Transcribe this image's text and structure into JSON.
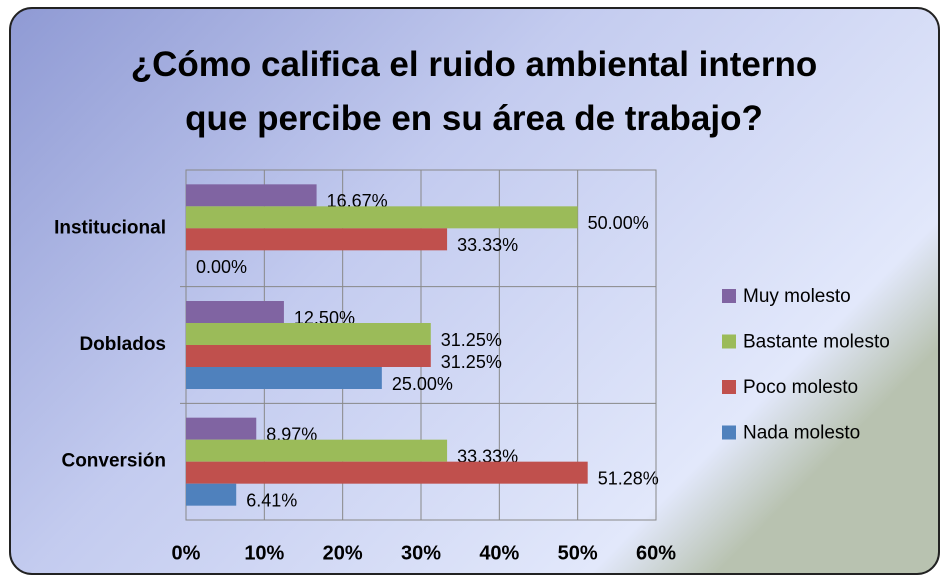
{
  "chart_data": {
    "type": "barh",
    "title": "¿Cómo califica el ruido ambiental interno que percibe en su área de trabajo?",
    "categories": [
      "Institucional",
      "Doblados",
      "Conversión"
    ],
    "series": [
      {
        "name": "Muy molesto",
        "color": "#8064a2",
        "values": [
          16.67,
          12.5,
          8.97
        ],
        "value_labels": [
          "16.67%",
          "12.50%",
          "8.97%"
        ]
      },
      {
        "name": "Bastante molesto",
        "color": "#9bbb59",
        "values": [
          50.0,
          31.25,
          33.33
        ],
        "value_labels": [
          "50.00%",
          "31.25%",
          "33.33%"
        ]
      },
      {
        "name": "Poco molesto",
        "color": "#c0504d",
        "values": [
          33.33,
          31.25,
          51.28
        ],
        "value_labels": [
          "33.33%",
          "31.25%",
          "51.28%"
        ]
      },
      {
        "name": "Nada molesto",
        "color": "#4f81bd",
        "values": [
          0.0,
          25.0,
          6.41
        ],
        "value_labels": [
          "0.00%",
          "25.00%",
          "6.41%"
        ]
      }
    ],
    "xlim": [
      0,
      60
    ],
    "xticks": [
      {
        "value": 0,
        "label": "0%"
      },
      {
        "value": 10,
        "label": "10%"
      },
      {
        "value": 20,
        "label": "20%"
      },
      {
        "value": 30,
        "label": "30%"
      },
      {
        "value": 40,
        "label": "40%"
      },
      {
        "value": 50,
        "label": "50%"
      },
      {
        "value": 60,
        "label": "60%"
      }
    ],
    "grid": true,
    "legend": "right"
  }
}
